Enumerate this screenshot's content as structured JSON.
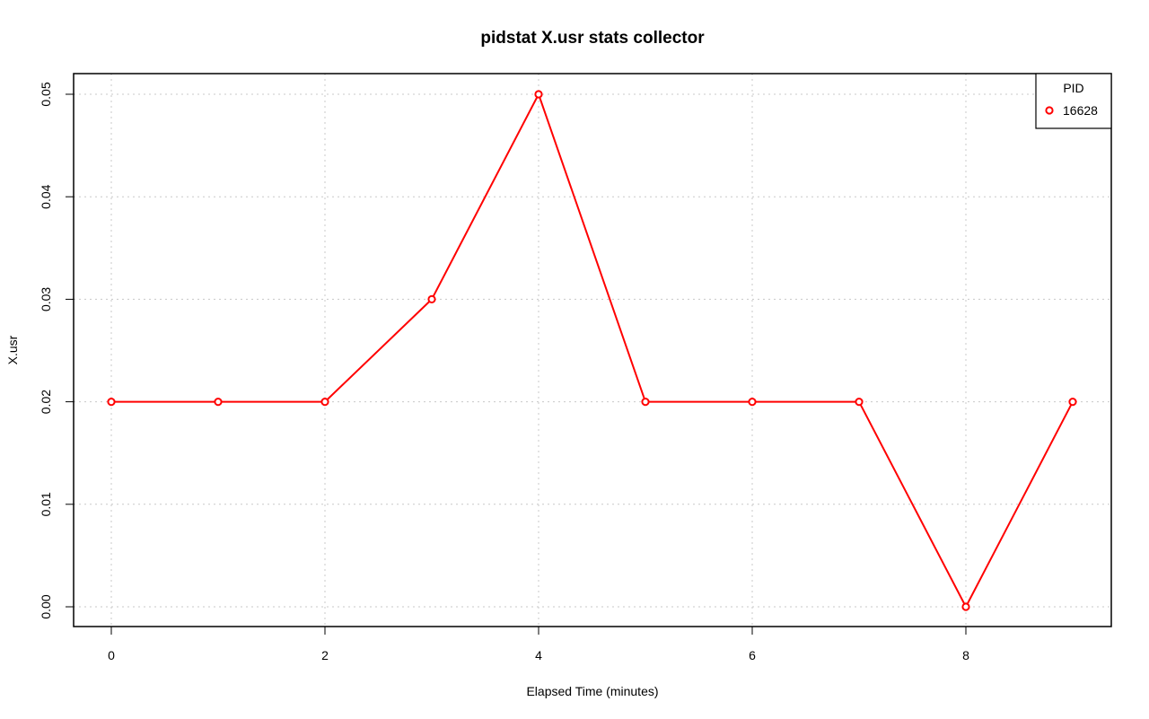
{
  "chart_data": {
    "type": "line",
    "title": "pidstat X.usr stats collector",
    "xlabel": "Elapsed Time (minutes)",
    "ylabel": "X.usr",
    "xlim": [
      0,
      9
    ],
    "ylim": [
      0,
      0.05
    ],
    "xticks": [
      0,
      2,
      4,
      6,
      8
    ],
    "yticks": [
      0.0,
      0.01,
      0.02,
      0.03,
      0.04,
      0.05
    ],
    "ytick_labels": [
      "0.00",
      "0.01",
      "0.02",
      "0.03",
      "0.04",
      "0.05"
    ],
    "grid": true,
    "legend": {
      "title": "PID",
      "placement": "top-right"
    },
    "series": [
      {
        "name": "16628",
        "color": "#ff0000",
        "x": [
          0,
          1,
          2,
          3,
          4,
          5,
          6,
          7,
          8,
          9
        ],
        "y": [
          0.02,
          0.02,
          0.02,
          0.03,
          0.05,
          0.02,
          0.02,
          0.02,
          0.0,
          0.02
        ]
      }
    ]
  }
}
